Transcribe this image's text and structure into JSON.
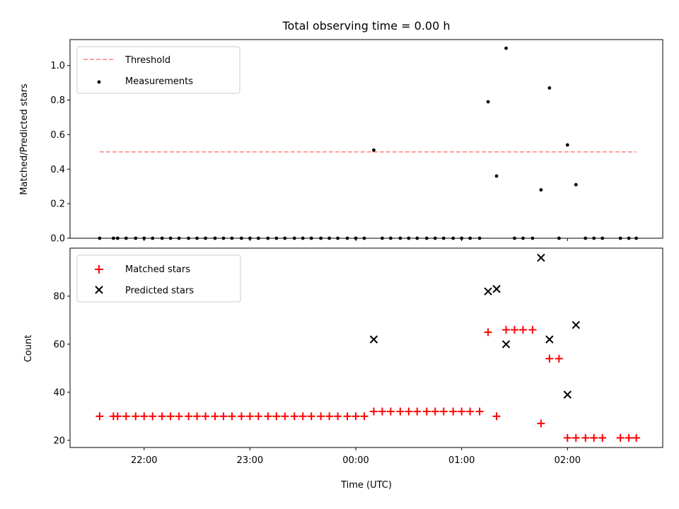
{
  "chart_data": {
    "title": "Total observing time = 0.00 h",
    "xlabel": "Time (UTC)",
    "x_unit": "hours relative to 00:00 UTC",
    "xlim": [
      -2.7,
      2.9
    ],
    "x_ticks": [
      -2,
      -1,
      0,
      1,
      2
    ],
    "x_tick_labels": [
      "22:00",
      "23:00",
      "00:00",
      "01:00",
      "02:00"
    ],
    "panels": [
      {
        "type": "scatter",
        "ylabel": "Matched/Predicted stars",
        "ylim": [
          0,
          1.15
        ],
        "y_ticks": [
          0,
          0.2,
          0.4,
          0.6,
          0.8,
          1.0
        ],
        "y_tick_labels": [
          "0.0",
          "0.2",
          "0.4",
          "0.6",
          "0.8",
          "1.0"
        ],
        "legend_position": "top-left",
        "threshold": {
          "name": "Threshold",
          "y": 0.5,
          "x": [
            -2.42,
            2.65
          ],
          "color": "#ff8080"
        },
        "series": [
          {
            "name": "Measurements",
            "marker": "dot",
            "color": "#000000",
            "points": [
              [
                -2.42,
                0
              ],
              [
                -2.29,
                0
              ],
              [
                -2.25,
                0
              ],
              [
                -2.17,
                0
              ],
              [
                -2.08,
                0
              ],
              [
                -2.0,
                0
              ],
              [
                -1.92,
                0
              ],
              [
                -1.83,
                0
              ],
              [
                -1.75,
                0
              ],
              [
                -1.67,
                0
              ],
              [
                -1.58,
                0
              ],
              [
                -1.5,
                0
              ],
              [
                -1.42,
                0
              ],
              [
                -1.33,
                0
              ],
              [
                -1.25,
                0
              ],
              [
                -1.17,
                0
              ],
              [
                -1.08,
                0
              ],
              [
                -1.0,
                0
              ],
              [
                -0.92,
                0
              ],
              [
                -0.83,
                0
              ],
              [
                -0.75,
                0
              ],
              [
                -0.67,
                0
              ],
              [
                -0.58,
                0
              ],
              [
                -0.5,
                0
              ],
              [
                -0.42,
                0
              ],
              [
                -0.33,
                0
              ],
              [
                -0.25,
                0
              ],
              [
                -0.17,
                0
              ],
              [
                -0.08,
                0
              ],
              [
                0.0,
                0
              ],
              [
                0.08,
                0
              ],
              [
                0.17,
                0.51
              ],
              [
                0.25,
                0
              ],
              [
                0.33,
                0
              ],
              [
                0.42,
                0
              ],
              [
                0.5,
                0
              ],
              [
                0.58,
                0
              ],
              [
                0.67,
                0
              ],
              [
                0.75,
                0
              ],
              [
                0.83,
                0
              ],
              [
                0.92,
                0
              ],
              [
                1.0,
                0
              ],
              [
                1.08,
                0
              ],
              [
                1.17,
                0
              ],
              [
                1.25,
                0.79
              ],
              [
                1.33,
                0.36
              ],
              [
                1.42,
                1.1
              ],
              [
                1.5,
                0
              ],
              [
                1.58,
                0
              ],
              [
                1.67,
                0
              ],
              [
                1.75,
                0.28
              ],
              [
                1.83,
                0.87
              ],
              [
                1.92,
                0
              ],
              [
                2.0,
                0.54
              ],
              [
                2.08,
                0.31
              ],
              [
                2.17,
                0
              ],
              [
                2.25,
                0
              ],
              [
                2.33,
                0
              ],
              [
                2.5,
                0
              ],
              [
                2.58,
                0
              ],
              [
                2.65,
                0
              ]
            ]
          }
        ]
      },
      {
        "type": "scatter",
        "ylabel": "Count",
        "ylim": [
          17,
          100
        ],
        "y_ticks": [
          20,
          40,
          60,
          80
        ],
        "y_tick_labels": [
          "20",
          "40",
          "60",
          "80"
        ],
        "legend_position": "top-left",
        "series": [
          {
            "name": "Matched stars",
            "marker": "plus",
            "color": "#ff0000",
            "points": [
              [
                -2.42,
                30
              ],
              [
                -2.29,
                30
              ],
              [
                -2.25,
                30
              ],
              [
                -2.17,
                30
              ],
              [
                -2.08,
                30
              ],
              [
                -2.0,
                30
              ],
              [
                -1.92,
                30
              ],
              [
                -1.83,
                30
              ],
              [
                -1.75,
                30
              ],
              [
                -1.67,
                30
              ],
              [
                -1.58,
                30
              ],
              [
                -1.5,
                30
              ],
              [
                -1.42,
                30
              ],
              [
                -1.33,
                30
              ],
              [
                -1.25,
                30
              ],
              [
                -1.17,
                30
              ],
              [
                -1.08,
                30
              ],
              [
                -1.0,
                30
              ],
              [
                -0.92,
                30
              ],
              [
                -0.83,
                30
              ],
              [
                -0.75,
                30
              ],
              [
                -0.67,
                30
              ],
              [
                -0.58,
                30
              ],
              [
                -0.5,
                30
              ],
              [
                -0.42,
                30
              ],
              [
                -0.33,
                30
              ],
              [
                -0.25,
                30
              ],
              [
                -0.17,
                30
              ],
              [
                -0.08,
                30
              ],
              [
                0.0,
                30
              ],
              [
                0.08,
                30
              ],
              [
                0.17,
                32
              ],
              [
                0.25,
                32
              ],
              [
                0.33,
                32
              ],
              [
                0.42,
                32
              ],
              [
                0.5,
                32
              ],
              [
                0.58,
                32
              ],
              [
                0.67,
                32
              ],
              [
                0.75,
                32
              ],
              [
                0.83,
                32
              ],
              [
                0.92,
                32
              ],
              [
                1.0,
                32
              ],
              [
                1.08,
                32
              ],
              [
                1.17,
                32
              ],
              [
                1.25,
                65
              ],
              [
                1.33,
                30
              ],
              [
                1.42,
                66
              ],
              [
                1.5,
                66
              ],
              [
                1.58,
                66
              ],
              [
                1.67,
                66
              ],
              [
                1.75,
                27
              ],
              [
                1.83,
                54
              ],
              [
                1.92,
                54
              ],
              [
                2.0,
                21
              ],
              [
                2.08,
                21
              ],
              [
                2.17,
                21
              ],
              [
                2.25,
                21
              ],
              [
                2.33,
                21
              ],
              [
                2.5,
                21
              ],
              [
                2.58,
                21
              ],
              [
                2.65,
                21
              ]
            ]
          },
          {
            "name": "Predicted stars",
            "marker": "x",
            "color": "#000000",
            "points": [
              [
                0.17,
                62
              ],
              [
                1.25,
                82
              ],
              [
                1.33,
                83
              ],
              [
                1.42,
                60
              ],
              [
                1.75,
                96
              ],
              [
                1.83,
                62
              ],
              [
                2.0,
                39
              ],
              [
                2.08,
                68
              ]
            ]
          }
        ]
      }
    ]
  }
}
